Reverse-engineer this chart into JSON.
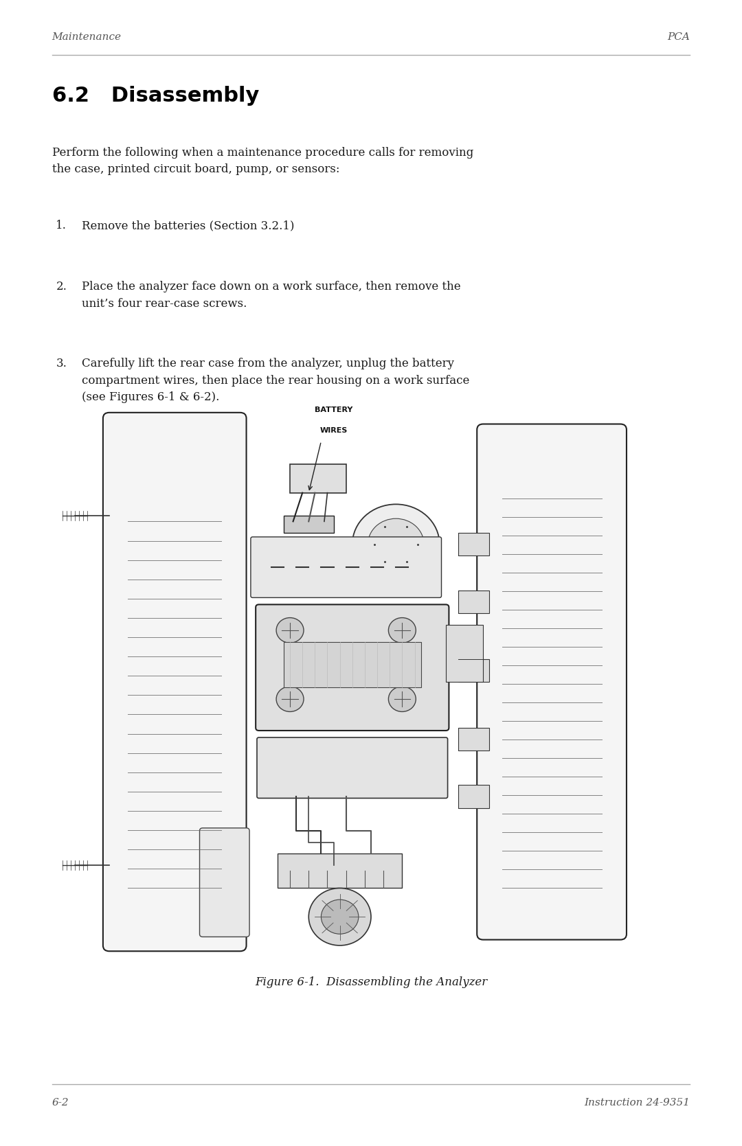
{
  "page_width": 10.8,
  "page_height": 16.69,
  "bg_color": "#ffffff",
  "header_left": "Maintenance",
  "header_right": "PCA",
  "header_color": "#555555",
  "header_line_color": "#aaaaaa",
  "footer_left": "6-2",
  "footer_right": "Instruction 24-9351",
  "footer_color": "#555555",
  "footer_line_color": "#aaaaaa",
  "section_title": "6.2   Disassembly",
  "intro_text": "Perform the following when a maintenance procedure calls for removing\nthe case, printed circuit board, pump, or sensors:",
  "steps": [
    "Remove the batteries (Section 3.2.1)",
    "Place the analyzer face down on a work surface, then remove the\nunit’s four rear-case screws.",
    "Carefully lift the rear case from the analyzer, unplug the battery\ncompartment wires, then place the rear housing on a work surface\n(see Figures 6-1 & 6-2)."
  ],
  "figure_caption": "Figure 6-1.  Disassembling the Analyzer",
  "text_color": "#1a1a1a",
  "title_color": "#000000"
}
